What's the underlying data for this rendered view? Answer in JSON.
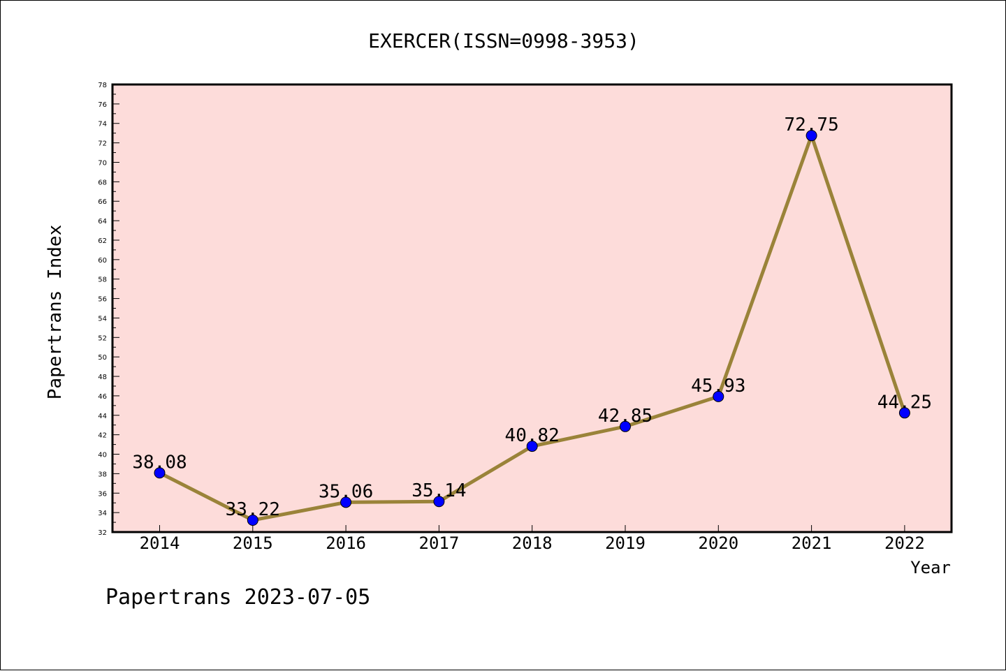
{
  "chart_data": {
    "type": "line",
    "title": "EXERCER(ISSN=0998-3953)",
    "xlabel": "Year",
    "ylabel": "Papertrans Index",
    "categories": [
      "2014",
      "2015",
      "2016",
      "2017",
      "2018",
      "2019",
      "2020",
      "2021",
      "2022"
    ],
    "values": [
      38.08,
      33.22,
      35.06,
      35.14,
      40.82,
      42.85,
      45.93,
      72.75,
      44.25
    ],
    "data_labels": [
      "38.08",
      "33.22",
      "35.06",
      "35.14",
      "40.82",
      "42.85",
      "45.93",
      "72.75",
      "44.25"
    ],
    "ylim": [
      32,
      78
    ],
    "y_ticks": [
      "32",
      "34",
      "36",
      "38",
      "40",
      "42",
      "44",
      "46",
      "48",
      "50",
      "52",
      "54",
      "56",
      "58",
      "60",
      "62",
      "64",
      "66",
      "68",
      "70",
      "72",
      "74",
      "76",
      "78"
    ],
    "grid": false,
    "colors": {
      "plot_background": "#fddcda",
      "line": "#9a8339",
      "marker": "#0000ff"
    }
  },
  "footer": "Papertrans 2023-07-05"
}
